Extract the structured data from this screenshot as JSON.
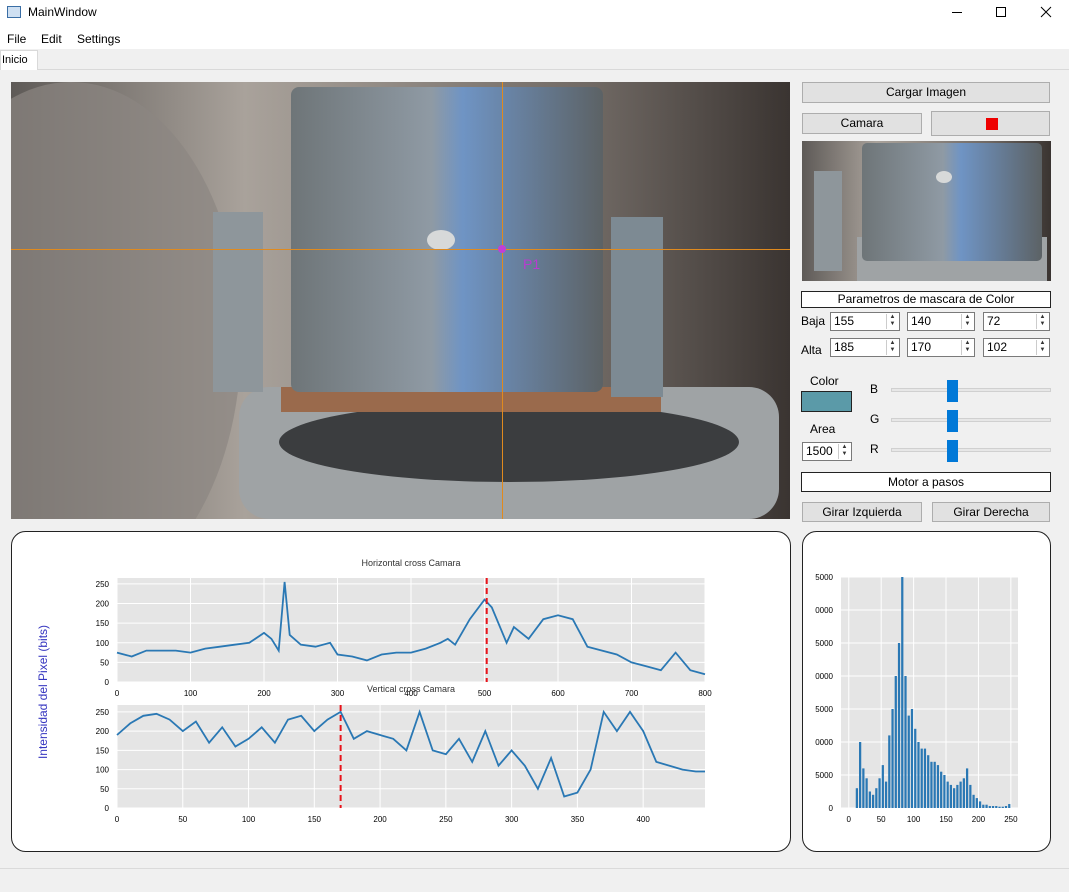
{
  "window": {
    "title": "MainWindow"
  },
  "menu": [
    "File",
    "Edit",
    "Settings"
  ],
  "tabs": [
    "Inicio"
  ],
  "camera": {
    "marker_label": "P1"
  },
  "controls": {
    "load_button": "Cargar Imagen",
    "camera_button": "Camara",
    "mask_title": "Parametros de mascara de Color",
    "low_label": "Baja",
    "high_label": "Alta",
    "low": [
      155,
      140,
      72
    ],
    "high": [
      185,
      170,
      102
    ],
    "color_label": "Color",
    "color": "#5b9aa8",
    "area_label": "Area",
    "area": 1500,
    "channels": [
      "B",
      "G",
      "R"
    ],
    "motor_title": "Motor a pasos",
    "left_button": "Girar Izquierda",
    "right_button": "Girar Derecha"
  },
  "chart_data": [
    {
      "type": "line",
      "title": "Horizontal cross Camara",
      "ylabel": "Intensidad del Pixel (bits)",
      "x": [
        0,
        20,
        40,
        60,
        80,
        100,
        120,
        140,
        160,
        180,
        200,
        210,
        220,
        228,
        235,
        250,
        270,
        290,
        300,
        320,
        340,
        360,
        380,
        400,
        420,
        440,
        450,
        460,
        480,
        500,
        510,
        530,
        540,
        560,
        580,
        600,
        620,
        640,
        660,
        680,
        700,
        720,
        740,
        760,
        780,
        800
      ],
      "series": [
        {
          "color": "#2a78b4",
          "values": [
            75,
            65,
            80,
            80,
            80,
            75,
            85,
            90,
            95,
            100,
            125,
            110,
            80,
            255,
            120,
            95,
            90,
            100,
            70,
            65,
            55,
            70,
            75,
            75,
            85,
            100,
            110,
            95,
            160,
            210,
            190,
            100,
            140,
            110,
            160,
            170,
            160,
            90,
            80,
            70,
            50,
            40,
            30,
            75,
            30,
            20
          ]
        }
      ],
      "cursor_x": 503,
      "cursor_color": "#e8131a",
      "xlim": [
        0,
        800
      ],
      "xticks": [
        0,
        100,
        200,
        300,
        400,
        500,
        600,
        700,
        800
      ],
      "ylim": [
        0,
        265
      ],
      "yticks": [
        0,
        50,
        100,
        150,
        200,
        250
      ],
      "grid": true
    },
    {
      "type": "line",
      "title": "Vertical cross Camara",
      "x": [
        0,
        10,
        20,
        30,
        40,
        50,
        60,
        70,
        80,
        90,
        100,
        110,
        120,
        130,
        140,
        150,
        160,
        170,
        180,
        190,
        200,
        210,
        220,
        230,
        240,
        250,
        260,
        270,
        280,
        290,
        300,
        310,
        320,
        330,
        340,
        350,
        360,
        370,
        380,
        390,
        400,
        410,
        420,
        430,
        440,
        447
      ],
      "series": [
        {
          "color": "#2a78b4",
          "values": [
            190,
            220,
            240,
            245,
            230,
            200,
            225,
            170,
            210,
            160,
            180,
            210,
            170,
            230,
            240,
            200,
            230,
            250,
            180,
            200,
            190,
            180,
            150,
            250,
            150,
            140,
            180,
            120,
            200,
            110,
            150,
            110,
            50,
            130,
            30,
            40,
            100,
            250,
            200,
            250,
            200,
            120,
            110,
            100,
            95,
            95
          ]
        }
      ],
      "cursor_x": 170,
      "cursor_color": "#e8131a",
      "xlim": [
        0,
        447
      ],
      "xticks": [
        0,
        50,
        100,
        150,
        200,
        250,
        300,
        350,
        400
      ],
      "ylim": [
        0,
        268
      ],
      "yticks": [
        0,
        50,
        100,
        150,
        200,
        250
      ],
      "grid": true
    },
    {
      "type": "histogram",
      "bins": [
        10,
        15,
        20,
        25,
        30,
        35,
        40,
        45,
        50,
        55,
        60,
        65,
        70,
        75,
        80,
        85,
        90,
        95,
        100,
        105,
        110,
        115,
        120,
        125,
        130,
        135,
        140,
        145,
        150,
        155,
        160,
        165,
        170,
        175,
        180,
        185,
        190,
        195,
        200,
        205,
        210,
        215,
        220,
        225,
        230,
        235,
        240,
        245,
        250
      ],
      "counts": [
        3000,
        10000,
        6000,
        4500,
        2500,
        2000,
        3000,
        4500,
        6500,
        4000,
        11000,
        15000,
        20000,
        25000,
        35000,
        20000,
        14000,
        15000,
        12000,
        10000,
        9000,
        9000,
        8000,
        7000,
        7000,
        6500,
        5500,
        5000,
        4000,
        3500,
        3000,
        3500,
        4000,
        4500,
        6000,
        3500,
        2000,
        1500,
        1000,
        500,
        500,
        300,
        300,
        300,
        200,
        200,
        300,
        600
      ],
      "color": "#2a78b4",
      "xlim": [
        -12,
        261
      ],
      "xticks": [
        0,
        50,
        100,
        150,
        200,
        250
      ],
      "ylim": [
        0,
        35000
      ],
      "yticks": [
        0,
        {
          "value": 5000,
          "label": "5000"
        },
        {
          "value": 10000,
          "label": "0000"
        },
        {
          "value": 15000,
          "label": "5000"
        },
        {
          "value": 20000,
          "label": "0000"
        },
        {
          "value": 25000,
          "label": "5000"
        },
        {
          "value": 30000,
          "label": "0000"
        },
        {
          "value": 35000,
          "label": "5000"
        }
      ],
      "grid": true
    }
  ]
}
